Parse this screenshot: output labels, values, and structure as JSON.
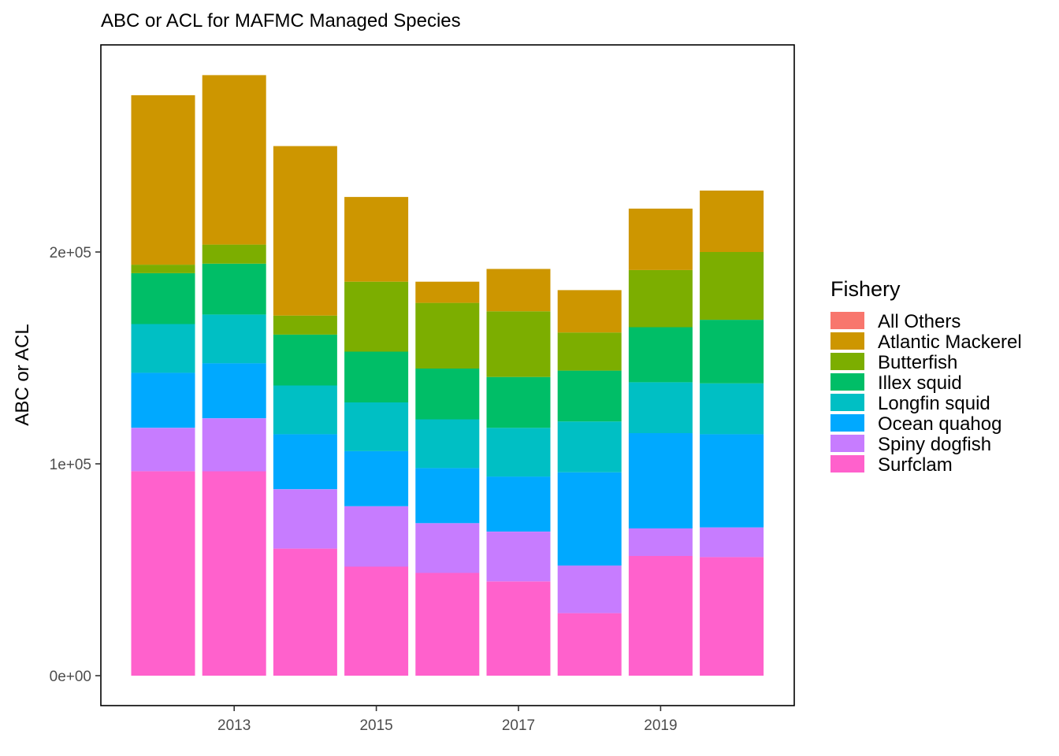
{
  "chart_data": {
    "type": "bar",
    "stacked": true,
    "title": "ABC or ACL for MAFMC Managed Species",
    "xlabel": "",
    "ylabel": "ABC or ACL",
    "x": [
      2012,
      2013,
      2014,
      2015,
      2016,
      2017,
      2018,
      2019,
      2020
    ],
    "x_ticks": [
      2013,
      2015,
      2017,
      2019
    ],
    "x_tick_labels": [
      "2013",
      "2015",
      "2017",
      "2019"
    ],
    "ylim": [
      0,
      285000
    ],
    "y_ticks": [
      0,
      100000,
      200000
    ],
    "y_tick_labels": [
      "0e+00",
      "1e+05",
      "2e+05"
    ],
    "grid": false,
    "legend": {
      "title": "Fishery",
      "position": "right"
    },
    "series": [
      {
        "name": "All Others",
        "color": "#F8766D",
        "values": [
          0,
          0,
          0,
          0,
          0,
          0,
          0,
          0,
          0
        ]
      },
      {
        "name": "Atlantic Mackerel",
        "color": "#CD9600",
        "values": [
          80000,
          80000,
          80000,
          40000,
          10000,
          20000,
          20000,
          29000,
          29000
        ]
      },
      {
        "name": "Butterfish",
        "color": "#7CAE00",
        "values": [
          4000,
          9000,
          9000,
          33000,
          31000,
          31000,
          18000,
          27000,
          32000
        ]
      },
      {
        "name": "Illex squid",
        "color": "#00BE67",
        "values": [
          24000,
          24000,
          24000,
          24000,
          24000,
          24000,
          24000,
          26000,
          30000
        ]
      },
      {
        "name": "Longfin squid",
        "color": "#00BFC4",
        "values": [
          23000,
          23000,
          23000,
          23000,
          23000,
          23000,
          24000,
          24000,
          24000
        ]
      },
      {
        "name": "Ocean quahog",
        "color": "#00A9FF",
        "values": [
          26000,
          26000,
          26000,
          26000,
          26000,
          26000,
          44000,
          45000,
          44000
        ]
      },
      {
        "name": "Spiny dogfish",
        "color": "#C77CFF",
        "values": [
          20500,
          25000,
          28000,
          28500,
          23500,
          23500,
          22500,
          13000,
          14000
        ]
      },
      {
        "name": "Surfclam",
        "color": "#FF61CC",
        "values": [
          96500,
          96500,
          60000,
          51500,
          48500,
          44500,
          29500,
          56500,
          56000
        ]
      }
    ]
  }
}
